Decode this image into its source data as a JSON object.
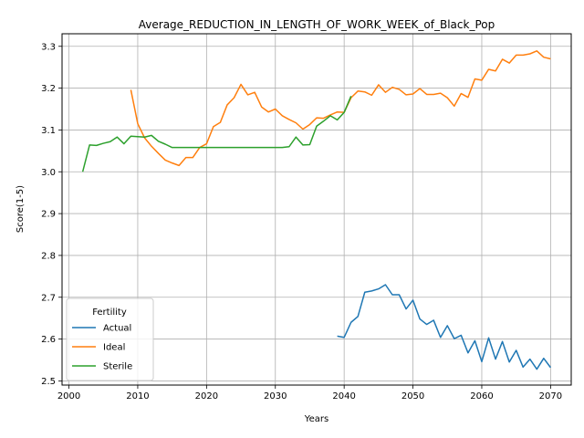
{
  "chart_data": {
    "type": "line",
    "title": "Average_REDUCTION_IN_LENGTH_OF_WORK_WEEK_of_Black_Pop",
    "xlabel": "Years",
    "ylabel": "Score(1-5)",
    "xlim": [
      1999,
      2073
    ],
    "ylim": [
      2.49,
      3.33
    ],
    "xticks": [
      2000,
      2010,
      2020,
      2030,
      2040,
      2050,
      2060,
      2070
    ],
    "yticks": [
      2.5,
      2.6,
      2.7,
      2.8,
      2.9,
      3.0,
      3.1,
      3.2,
      3.3
    ],
    "grid": true,
    "legend": {
      "title": "Fertility",
      "placement": "lower-left"
    },
    "colors": {
      "Actual": "#1f77b4",
      "Ideal": "#ff7f0e",
      "Sterile": "#2ca02c"
    },
    "series": [
      {
        "name": "Actual",
        "x": [
          2039,
          2040,
          2041,
          2042,
          2043,
          2044,
          2045,
          2046,
          2047,
          2048,
          2049,
          2050,
          2051,
          2052,
          2053,
          2054,
          2055,
          2056,
          2057,
          2058,
          2059,
          2060,
          2061,
          2062,
          2063,
          2064,
          2065,
          2066,
          2067,
          2068,
          2069,
          2070
        ],
        "values": [
          2.607,
          2.604,
          2.64,
          2.654,
          2.712,
          2.715,
          2.72,
          2.73,
          2.706,
          2.706,
          2.672,
          2.693,
          2.648,
          2.635,
          2.645,
          2.604,
          2.632,
          2.601,
          2.609,
          2.567,
          2.596,
          2.546,
          2.603,
          2.552,
          2.594,
          2.545,
          2.573,
          2.533,
          2.552,
          2.528,
          2.554,
          2.532
        ]
      },
      {
        "name": "Ideal",
        "x": [
          2009,
          2010,
          2011,
          2012,
          2013,
          2014,
          2015,
          2016,
          2017,
          2018,
          2019,
          2020,
          2021,
          2022,
          2023,
          2024,
          2025,
          2026,
          2027,
          2028,
          2029,
          2030,
          2031,
          2032,
          2033,
          2034,
          2035,
          2036,
          2037,
          2038,
          2039,
          2040,
          2041,
          2042,
          2043,
          2044,
          2045,
          2046,
          2047,
          2048,
          2049,
          2050,
          2051,
          2052,
          2053,
          2054,
          2055,
          2056,
          2057,
          2058,
          2059,
          2060,
          2061,
          2062,
          2063,
          2064,
          2065,
          2066,
          2067,
          2068,
          2069,
          2070
        ],
        "values": [
          3.196,
          3.115,
          3.081,
          3.061,
          3.044,
          3.028,
          3.021,
          3.015,
          3.034,
          3.034,
          3.058,
          3.067,
          3.108,
          3.118,
          3.16,
          3.177,
          3.209,
          3.184,
          3.19,
          3.155,
          3.143,
          3.15,
          3.134,
          3.125,
          3.117,
          3.102,
          3.113,
          3.129,
          3.128,
          3.136,
          3.143,
          3.142,
          3.177,
          3.193,
          3.191,
          3.183,
          3.208,
          3.19,
          3.202,
          3.197,
          3.184,
          3.186,
          3.199,
          3.185,
          3.185,
          3.188,
          3.177,
          3.157,
          3.187,
          3.178,
          3.222,
          3.219,
          3.245,
          3.241,
          3.269,
          3.26,
          3.279,
          3.279,
          3.282,
          3.289,
          3.274,
          3.27
        ]
      },
      {
        "name": "Sterile",
        "x": [
          2002,
          2003,
          2004,
          2005,
          2006,
          2007,
          2008,
          2009,
          2010,
          2011,
          2012,
          2013,
          2014,
          2015,
          2016,
          2017,
          2018,
          2019,
          2020,
          2021,
          2022,
          2023,
          2024,
          2025,
          2026,
          2027,
          2028,
          2029,
          2030,
          2031,
          2032,
          2033,
          2034,
          2035,
          2036,
          2037,
          2038,
          2039,
          2040,
          2041
        ],
        "values": [
          3.0,
          3.064,
          3.063,
          3.068,
          3.072,
          3.083,
          3.067,
          3.085,
          3.084,
          3.083,
          3.087,
          3.073,
          3.066,
          3.058,
          3.058,
          3.058,
          3.058,
          3.058,
          3.058,
          3.058,
          3.058,
          3.058,
          3.058,
          3.058,
          3.058,
          3.058,
          3.058,
          3.058,
          3.058,
          3.058,
          3.06,
          3.083,
          3.064,
          3.065,
          3.109,
          3.121,
          3.134,
          3.124,
          3.142,
          3.181
        ]
      }
    ]
  }
}
